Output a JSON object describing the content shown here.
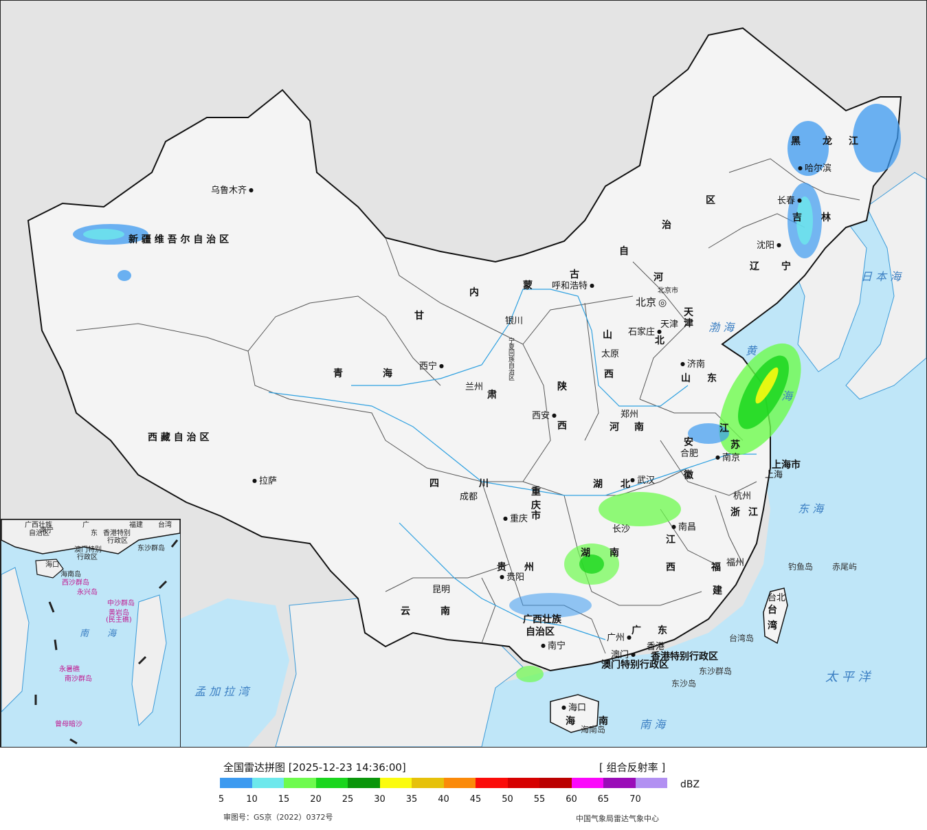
{
  "legend": {
    "title": "全国雷达拼图 [2025-12-23 14:36:00]",
    "product": "[ 组合反射率 ]",
    "unit": "dBZ",
    "colors": [
      "#3c9af0",
      "#6de8ec",
      "#6efb4e",
      "#1bd61e",
      "#0a960b",
      "#fbfb0f",
      "#e6c10a",
      "#fb8a09",
      "#fb0c09",
      "#d60000",
      "#bb0000",
      "#fb08fb",
      "#9a0cb8",
      "#b290f2"
    ],
    "ticks": [
      "5",
      "10",
      "15",
      "20",
      "25",
      "30",
      "35",
      "40",
      "45",
      "50",
      "55",
      "60",
      "65",
      "70"
    ],
    "approval": "审图号：GS京（2022）0372号",
    "agency": "中国气象局雷达气象中心"
  },
  "map": {
    "land_color": "#f4f4f4",
    "sea_color": "#bfe6f8",
    "outside_color": "#e4e4e4",
    "provinces": [
      "新 疆 维 吾 尔 自 治 区",
      "西 藏 自 治 区",
      "青",
      "海",
      "甘",
      "肃",
      "内",
      "蒙",
      "古",
      "自",
      "治",
      "区",
      "黑",
      "龙",
      "江",
      "吉",
      "林",
      "辽",
      "宁",
      "河",
      "北",
      "山",
      "西",
      "山",
      "东",
      "陕",
      "西",
      "河",
      "南",
      "四",
      "川",
      "重",
      "庆",
      "市",
      "湖",
      "北",
      "安",
      "徽",
      "江",
      "苏",
      "浙",
      "江",
      "上海市",
      "湖",
      "南",
      "江",
      "西",
      "福",
      "建",
      "贵",
      "州",
      "云",
      "南",
      "广西壮族",
      "自治区",
      "广",
      "东",
      "海",
      "南",
      "台",
      "湾",
      "香港特别行政区",
      "澳门特别行政区",
      "天",
      "津",
      "北京市",
      "宁夏回族自治区"
    ],
    "cities": [
      "乌鲁木齐",
      "拉萨",
      "西宁",
      "兰州",
      "银川",
      "呼和浩特",
      "北京",
      "天津",
      "石家庄",
      "太原",
      "济南",
      "郑州",
      "西安",
      "成都",
      "重庆",
      "武汉",
      "合肥",
      "南京",
      "上海",
      "杭州",
      "长沙",
      "南昌",
      "福州",
      "台北",
      "贵阳",
      "昆明",
      "南宁",
      "广州",
      "香港",
      "澳门",
      "海口",
      "哈尔滨",
      "长春",
      "沈阳"
    ],
    "seas": [
      "日 本 海",
      "渤 海",
      "黄",
      "海",
      "东 海",
      "太 平 洋",
      "南 海",
      "孟 加 拉 湾"
    ],
    "islands": [
      "钓鱼岛",
      "赤尾屿",
      "台湾岛",
      "东沙群岛",
      "东沙岛",
      "海南岛"
    ]
  },
  "inset": {
    "labels": [
      "广西壮族",
      "自治区",
      "南宁",
      "广",
      "东",
      "福建",
      "台湾",
      "香港特别",
      "行政区",
      "澳门特别",
      "行政区",
      "东沙群岛",
      "海口",
      "海南岛",
      "西沙群岛",
      "永兴岛",
      "中沙群岛",
      "黄岩岛",
      "(民主礁)",
      "南",
      "海",
      "永暑礁",
      "南沙群岛",
      "曾母暗沙"
    ]
  }
}
